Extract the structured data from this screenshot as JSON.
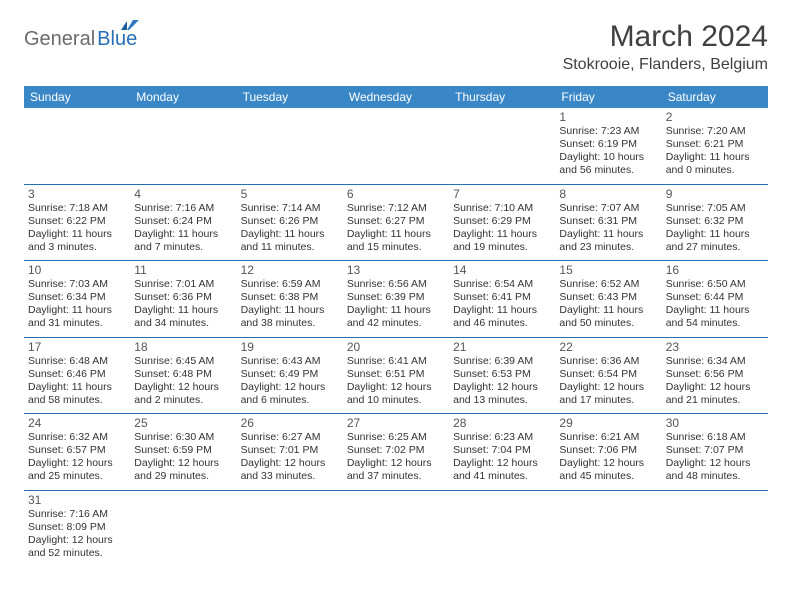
{
  "logo": {
    "general": "General",
    "blue": "Blue"
  },
  "title": "March 2024",
  "location": "Stokrooie, Flanders, Belgium",
  "days": [
    "Sunday",
    "Monday",
    "Tuesday",
    "Wednesday",
    "Thursday",
    "Friday",
    "Saturday"
  ],
  "colors": {
    "header_bg": "#3a87c7",
    "header_fg": "#ffffff",
    "rule": "#2770b8",
    "text": "#333333",
    "title": "#404040",
    "logo_gray": "#6b6b6b",
    "logo_blue": "#2770b8"
  },
  "cells": [
    [
      null,
      null,
      null,
      null,
      null,
      {
        "n": "1",
        "sr": "Sunrise: 7:23 AM",
        "ss": "Sunset: 6:19 PM",
        "dl": "Daylight: 10 hours and 56 minutes."
      },
      {
        "n": "2",
        "sr": "Sunrise: 7:20 AM",
        "ss": "Sunset: 6:21 PM",
        "dl": "Daylight: 11 hours and 0 minutes."
      }
    ],
    [
      {
        "n": "3",
        "sr": "Sunrise: 7:18 AM",
        "ss": "Sunset: 6:22 PM",
        "dl": "Daylight: 11 hours and 3 minutes."
      },
      {
        "n": "4",
        "sr": "Sunrise: 7:16 AM",
        "ss": "Sunset: 6:24 PM",
        "dl": "Daylight: 11 hours and 7 minutes."
      },
      {
        "n": "5",
        "sr": "Sunrise: 7:14 AM",
        "ss": "Sunset: 6:26 PM",
        "dl": "Daylight: 11 hours and 11 minutes."
      },
      {
        "n": "6",
        "sr": "Sunrise: 7:12 AM",
        "ss": "Sunset: 6:27 PM",
        "dl": "Daylight: 11 hours and 15 minutes."
      },
      {
        "n": "7",
        "sr": "Sunrise: 7:10 AM",
        "ss": "Sunset: 6:29 PM",
        "dl": "Daylight: 11 hours and 19 minutes."
      },
      {
        "n": "8",
        "sr": "Sunrise: 7:07 AM",
        "ss": "Sunset: 6:31 PM",
        "dl": "Daylight: 11 hours and 23 minutes."
      },
      {
        "n": "9",
        "sr": "Sunrise: 7:05 AM",
        "ss": "Sunset: 6:32 PM",
        "dl": "Daylight: 11 hours and 27 minutes."
      }
    ],
    [
      {
        "n": "10",
        "sr": "Sunrise: 7:03 AM",
        "ss": "Sunset: 6:34 PM",
        "dl": "Daylight: 11 hours and 31 minutes."
      },
      {
        "n": "11",
        "sr": "Sunrise: 7:01 AM",
        "ss": "Sunset: 6:36 PM",
        "dl": "Daylight: 11 hours and 34 minutes."
      },
      {
        "n": "12",
        "sr": "Sunrise: 6:59 AM",
        "ss": "Sunset: 6:38 PM",
        "dl": "Daylight: 11 hours and 38 minutes."
      },
      {
        "n": "13",
        "sr": "Sunrise: 6:56 AM",
        "ss": "Sunset: 6:39 PM",
        "dl": "Daylight: 11 hours and 42 minutes."
      },
      {
        "n": "14",
        "sr": "Sunrise: 6:54 AM",
        "ss": "Sunset: 6:41 PM",
        "dl": "Daylight: 11 hours and 46 minutes."
      },
      {
        "n": "15",
        "sr": "Sunrise: 6:52 AM",
        "ss": "Sunset: 6:43 PM",
        "dl": "Daylight: 11 hours and 50 minutes."
      },
      {
        "n": "16",
        "sr": "Sunrise: 6:50 AM",
        "ss": "Sunset: 6:44 PM",
        "dl": "Daylight: 11 hours and 54 minutes."
      }
    ],
    [
      {
        "n": "17",
        "sr": "Sunrise: 6:48 AM",
        "ss": "Sunset: 6:46 PM",
        "dl": "Daylight: 11 hours and 58 minutes."
      },
      {
        "n": "18",
        "sr": "Sunrise: 6:45 AM",
        "ss": "Sunset: 6:48 PM",
        "dl": "Daylight: 12 hours and 2 minutes."
      },
      {
        "n": "19",
        "sr": "Sunrise: 6:43 AM",
        "ss": "Sunset: 6:49 PM",
        "dl": "Daylight: 12 hours and 6 minutes."
      },
      {
        "n": "20",
        "sr": "Sunrise: 6:41 AM",
        "ss": "Sunset: 6:51 PM",
        "dl": "Daylight: 12 hours and 10 minutes."
      },
      {
        "n": "21",
        "sr": "Sunrise: 6:39 AM",
        "ss": "Sunset: 6:53 PM",
        "dl": "Daylight: 12 hours and 13 minutes."
      },
      {
        "n": "22",
        "sr": "Sunrise: 6:36 AM",
        "ss": "Sunset: 6:54 PM",
        "dl": "Daylight: 12 hours and 17 minutes."
      },
      {
        "n": "23",
        "sr": "Sunrise: 6:34 AM",
        "ss": "Sunset: 6:56 PM",
        "dl": "Daylight: 12 hours and 21 minutes."
      }
    ],
    [
      {
        "n": "24",
        "sr": "Sunrise: 6:32 AM",
        "ss": "Sunset: 6:57 PM",
        "dl": "Daylight: 12 hours and 25 minutes."
      },
      {
        "n": "25",
        "sr": "Sunrise: 6:30 AM",
        "ss": "Sunset: 6:59 PM",
        "dl": "Daylight: 12 hours and 29 minutes."
      },
      {
        "n": "26",
        "sr": "Sunrise: 6:27 AM",
        "ss": "Sunset: 7:01 PM",
        "dl": "Daylight: 12 hours and 33 minutes."
      },
      {
        "n": "27",
        "sr": "Sunrise: 6:25 AM",
        "ss": "Sunset: 7:02 PM",
        "dl": "Daylight: 12 hours and 37 minutes."
      },
      {
        "n": "28",
        "sr": "Sunrise: 6:23 AM",
        "ss": "Sunset: 7:04 PM",
        "dl": "Daylight: 12 hours and 41 minutes."
      },
      {
        "n": "29",
        "sr": "Sunrise: 6:21 AM",
        "ss": "Sunset: 7:06 PM",
        "dl": "Daylight: 12 hours and 45 minutes."
      },
      {
        "n": "30",
        "sr": "Sunrise: 6:18 AM",
        "ss": "Sunset: 7:07 PM",
        "dl": "Daylight: 12 hours and 48 minutes."
      }
    ],
    [
      {
        "n": "31",
        "sr": "Sunrise: 7:16 AM",
        "ss": "Sunset: 8:09 PM",
        "dl": "Daylight: 12 hours and 52 minutes."
      },
      null,
      null,
      null,
      null,
      null,
      null
    ]
  ]
}
